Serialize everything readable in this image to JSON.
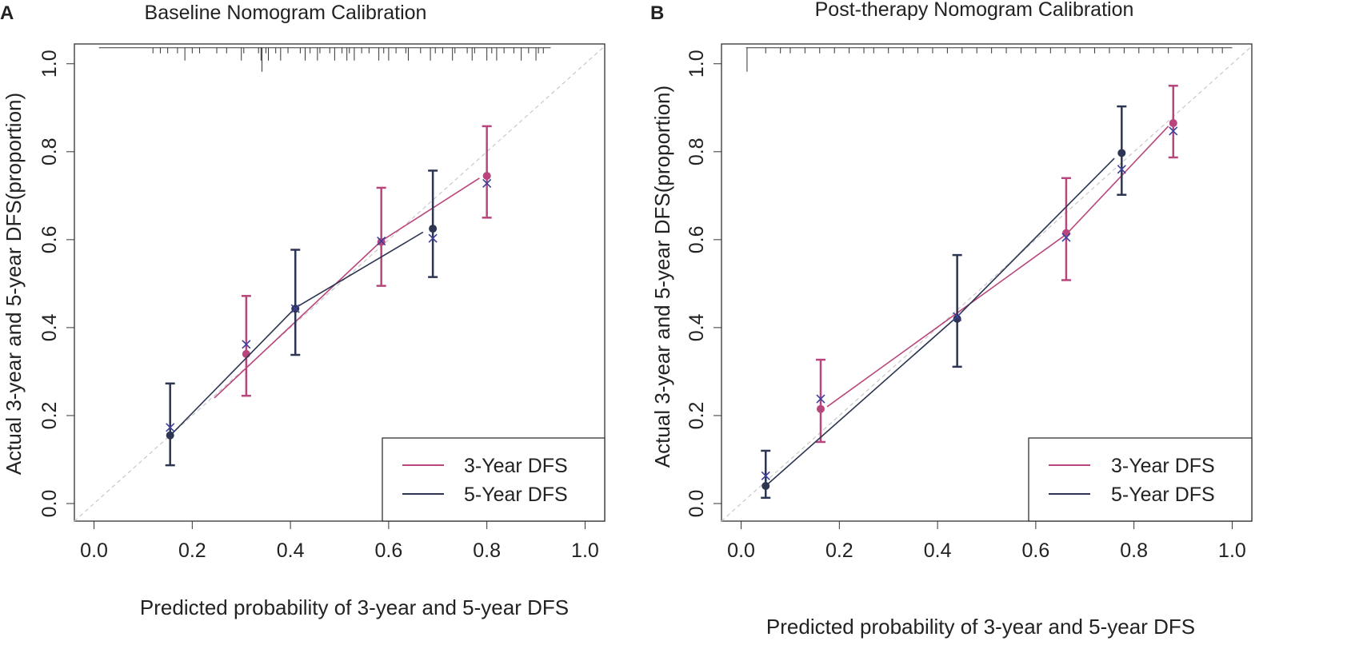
{
  "colors": {
    "three_year": "#b8467c",
    "five_year": "#2c3551",
    "x_marker": "#3b3f9a",
    "diagonal": "#c8c8c8",
    "rug": "#333333",
    "axis": "#333333"
  },
  "chart_data": [
    {
      "type": "scatter",
      "panel_label": "A",
      "title": "Baseline Nomogram Calibration",
      "xlabel": "Predicted probability of 3-year and 5-year DFS",
      "ylabel": "Actual 3-year and 5-year DFS(proportion)",
      "xlim": [
        -0.04,
        1.04
      ],
      "ylim": [
        -0.04,
        1.045
      ],
      "xticks": [
        "0.0",
        "0.2",
        "0.4",
        "0.6",
        "0.8",
        "1.0"
      ],
      "yticks": [
        "0.0",
        "0.2",
        "0.4",
        "0.6",
        "0.8",
        "1.0"
      ],
      "legend": [
        "3-Year DFS",
        "5-Year DFS"
      ],
      "legend_position": "bottom-right",
      "reference_line": "ideal diagonal y = x",
      "series": [
        {
          "name": "3-Year DFS",
          "x": [
            0.31,
            0.585,
            0.8
          ],
          "observed": [
            0.34,
            0.595,
            0.745
          ],
          "lower": [
            0.245,
            0.495,
            0.65
          ],
          "upper": [
            0.472,
            0.718,
            0.858
          ],
          "bias_corrected": [
            0.362,
            0.597,
            0.728
          ],
          "line_x": [
            0.245,
            0.585,
            0.785
          ],
          "line_y": [
            0.24,
            0.597,
            0.74
          ]
        },
        {
          "name": "5-Year DFS",
          "x": [
            0.155,
            0.41,
            0.69
          ],
          "observed": [
            0.155,
            0.443,
            0.625
          ],
          "lower": [
            0.087,
            0.338,
            0.515
          ],
          "upper": [
            0.273,
            0.577,
            0.757
          ],
          "bias_corrected": [
            0.173,
            0.443,
            0.603
          ],
          "line_x": [
            0.16,
            0.41,
            0.67
          ],
          "line_y": [
            0.16,
            0.445,
            0.617
          ]
        }
      ],
      "rug": {
        "x_start": 0.01,
        "x_end": 0.93,
        "short_ticks": [
          0.12,
          0.135,
          0.15,
          0.17,
          0.2,
          0.215,
          0.25,
          0.27,
          0.305,
          0.335,
          0.35,
          0.37,
          0.395,
          0.42,
          0.44,
          0.46,
          0.48,
          0.505,
          0.52,
          0.545,
          0.56,
          0.59,
          0.615,
          0.635,
          0.665,
          0.695,
          0.71,
          0.735,
          0.76,
          0.775,
          0.81,
          0.835,
          0.855,
          0.885,
          0.905,
          0.915
        ],
        "long_ticks": [
          0.185,
          0.3,
          0.34,
          0.355,
          0.38,
          0.43,
          0.455,
          0.49,
          0.515,
          0.53,
          0.58,
          0.6,
          0.64,
          0.685,
          0.73,
          0.77,
          0.8,
          0.82,
          0.87,
          0.9
        ],
        "tallest_tick": 0.342
      }
    },
    {
      "type": "scatter",
      "panel_label": "B",
      "title": "Post-therapy Nomogram Calibration",
      "xlabel": "Predicted probability of 3-year and 5-year DFS",
      "ylabel": "Actual 3-year and 5-year DFS(proportion)",
      "xlim": [
        -0.04,
        1.04
      ],
      "ylim": [
        -0.04,
        1.045
      ],
      "xticks": [
        "0.0",
        "0.2",
        "0.4",
        "0.6",
        "0.8",
        "1.0"
      ],
      "yticks": [
        "0.0",
        "0.2",
        "0.4",
        "0.6",
        "0.8",
        "1.0"
      ],
      "legend": [
        "3-Year DFS",
        "5-Year DFS"
      ],
      "legend_position": "bottom-right",
      "reference_line": "ideal diagonal y = x",
      "series": [
        {
          "name": "3-Year DFS",
          "x": [
            0.162,
            0.662,
            0.88
          ],
          "observed": [
            0.215,
            0.615,
            0.865
          ],
          "lower": [
            0.14,
            0.508,
            0.787
          ],
          "upper": [
            0.327,
            0.74,
            0.95
          ],
          "bias_corrected": [
            0.238,
            0.605,
            0.847
          ],
          "line_x": [
            0.175,
            0.662,
            0.87
          ],
          "line_y": [
            0.22,
            0.612,
            0.858
          ]
        },
        {
          "name": "5-Year DFS",
          "x": [
            0.05,
            0.44,
            0.775
          ],
          "observed": [
            0.04,
            0.42,
            0.797
          ],
          "lower": [
            0.013,
            0.311,
            0.702
          ],
          "upper": [
            0.12,
            0.565,
            0.903
          ],
          "bias_corrected": [
            0.063,
            0.425,
            0.76
          ],
          "line_x": [
            0.055,
            0.44,
            0.76
          ],
          "line_y": [
            0.045,
            0.425,
            0.785
          ]
        }
      ],
      "rug": {
        "x_start": 0.01,
        "x_end": 1.0,
        "short_ticks": [
          0.05,
          0.08,
          0.1,
          0.13,
          0.16,
          0.19,
          0.22,
          0.25,
          0.27,
          0.3,
          0.33,
          0.36,
          0.39,
          0.42,
          0.45,
          0.48,
          0.51,
          0.54,
          0.57,
          0.6,
          0.63,
          0.66,
          0.69,
          0.72,
          0.75,
          0.78,
          0.81,
          0.84,
          0.87,
          0.9,
          0.93,
          0.96,
          0.98
        ],
        "long_ticks": [],
        "tallest_tick": 0.012
      }
    }
  ]
}
